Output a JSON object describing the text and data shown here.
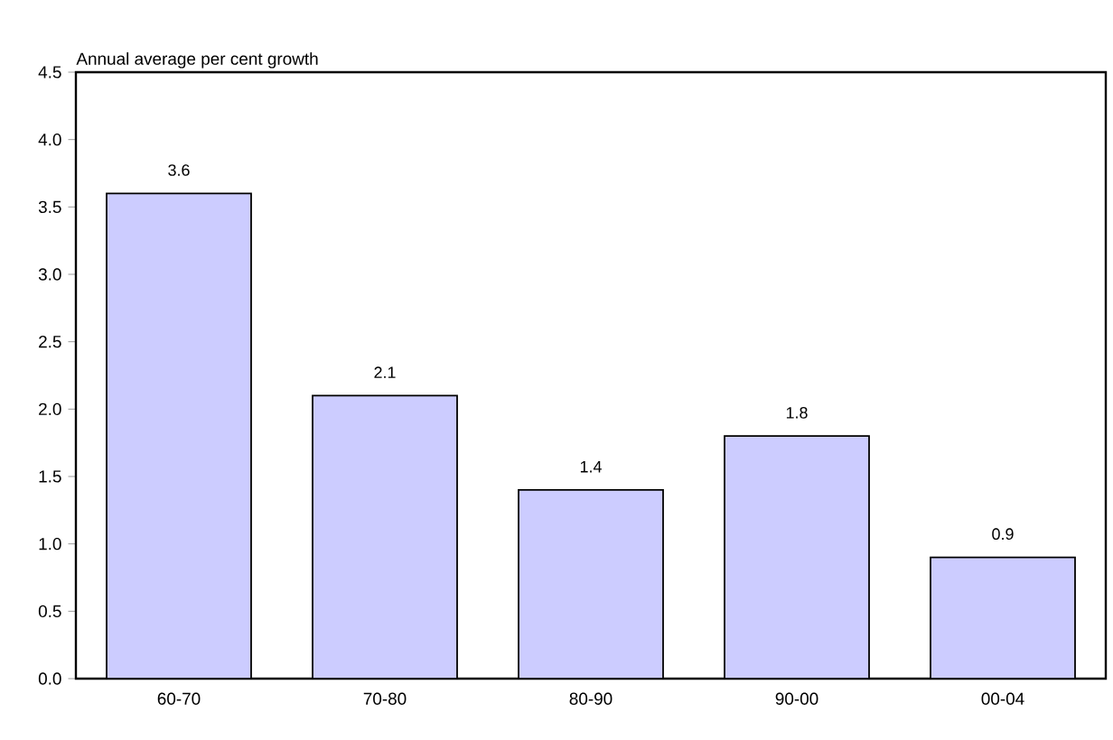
{
  "chart_data": {
    "type": "bar",
    "ylabel": "Annual average per cent growth",
    "categories": [
      "60-70",
      "70-80",
      "80-90",
      "90-00",
      "00-04"
    ],
    "values": [
      3.6,
      2.1,
      1.4,
      1.8,
      0.9
    ],
    "color": "#ccccff",
    "ylim": [
      0,
      4.5
    ],
    "yticks": [
      {
        "value": 0,
        "label": "0.0"
      },
      {
        "value": 0.5,
        "label": "0.5"
      },
      {
        "value": 1,
        "label": "1.0"
      },
      {
        "value": 1.5,
        "label": "1.5"
      },
      {
        "value": 2,
        "label": "2.0"
      },
      {
        "value": 2.5,
        "label": "2.5"
      },
      {
        "value": 3,
        "label": "3.0"
      },
      {
        "value": 3.5,
        "label": "3.5"
      },
      {
        "value": 4,
        "label": "4.0"
      },
      {
        "value": 4.5,
        "label": "4.5"
      }
    ],
    "data_labels": true,
    "grid": false
  }
}
